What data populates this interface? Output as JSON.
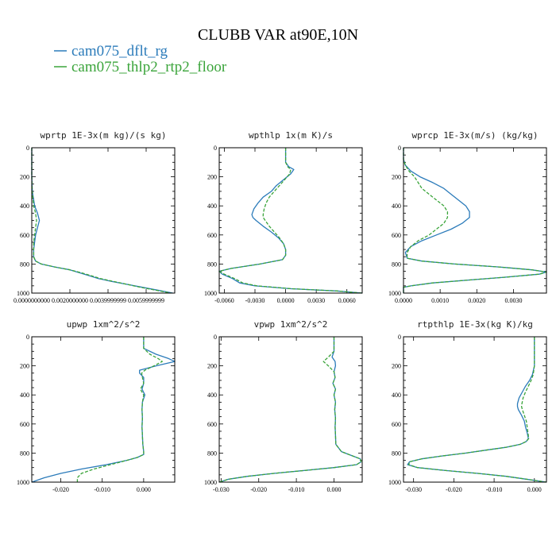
{
  "figure": {
    "title": "CLUBB VAR at90E,10N",
    "legend": [
      {
        "label": "cam075_dflt_rg",
        "color": "#2b7bba",
        "dash": false
      },
      {
        "label": "cam075_thlp2_rtp2_floor",
        "color": "#3aa43a",
        "dash": true
      }
    ]
  },
  "chart_data": [
    {
      "type": "line",
      "title": "wprtp  1E-3x(m kg)/(s kg)",
      "xlim": [
        0,
        0.0075
      ],
      "ylim": [
        1000,
        0
      ],
      "xticks": [
        {
          "value": 0,
          "label": "0.0000000000"
        },
        {
          "value": 0.002,
          "label": "0.0020000000"
        },
        {
          "value": 0.004,
          "label": "0.0039999999"
        },
        {
          "value": 0.006,
          "label": "0.0059999999"
        }
      ],
      "yticks": [
        0,
        200,
        400,
        600,
        800,
        1000
      ],
      "series": [
        {
          "y": [
            0,
            100,
            200,
            300,
            400,
            450,
            500,
            550,
            600,
            650,
            700,
            750,
            780,
            800,
            820,
            840,
            860,
            880,
            900,
            920,
            940,
            960,
            980,
            1000
          ],
          "x": [
            0,
            0,
            0,
            3e-05,
            0.00015,
            0.0003,
            0.0004,
            0.0003,
            0.0002,
            0.00015,
            0.0001,
            0.0001,
            0.0002,
            0.0005,
            0.0012,
            0.002,
            0.0025,
            0.003,
            0.0035,
            0.0042,
            0.005,
            0.0058,
            0.0066,
            0.0074
          ]
        },
        {
          "y": [
            0,
            100,
            200,
            300,
            400,
            450,
            500,
            550,
            600,
            650,
            700,
            750,
            780,
            800,
            820,
            840,
            860,
            880,
            900,
            920,
            940,
            960,
            980,
            1000
          ],
          "x": [
            0,
            0,
            0,
            2e-05,
            0.0001,
            0.0002,
            0.00025,
            0.0002,
            0.00015,
            0.0001,
            0.0001,
            0.0001,
            0.0002,
            0.0005,
            0.0012,
            0.002,
            0.0026,
            0.0031,
            0.0036,
            0.0043,
            0.005,
            0.0057,
            0.0065,
            0.0073
          ]
        }
      ]
    },
    {
      "type": "line",
      "title": "wpthlp  1x(m K)/s",
      "xlim": [
        -0.0065,
        0.0075
      ],
      "ylim": [
        1000,
        0
      ],
      "xticks": [
        {
          "value": -0.006,
          "label": "-0.0060"
        },
        {
          "value": -0.003,
          "label": "-0.0030"
        },
        {
          "value": 0,
          "label": "0.0000"
        },
        {
          "value": 0.003,
          "label": "0.0030"
        },
        {
          "value": 0.006,
          "label": "0.0060"
        }
      ],
      "yticks": [
        0,
        200,
        400,
        600,
        800,
        1000
      ],
      "series": [
        {
          "y": [
            0,
            50,
            100,
            130,
            150,
            180,
            220,
            260,
            300,
            340,
            380,
            420,
            460,
            480,
            500,
            540,
            580,
            620,
            660,
            700,
            740,
            770,
            800,
            830,
            850,
            870,
            900,
            930,
            950,
            970,
            985,
            1000
          ],
          "x": [
            0,
            0,
            0,
            0.0003,
            0.0008,
            0.0005,
            -0.0002,
            -0.0009,
            -0.0014,
            -0.0022,
            -0.0027,
            -0.0031,
            -0.0033,
            -0.0032,
            -0.0029,
            -0.0022,
            -0.0014,
            -0.0007,
            -0.0002,
            0,
            0,
            -0.0003,
            -0.0025,
            -0.0053,
            -0.0066,
            -0.0062,
            -0.0052,
            -0.0045,
            -0.003,
            0.0005,
            0.005,
            0.0075
          ]
        },
        {
          "y": [
            0,
            50,
            100,
            130,
            150,
            180,
            220,
            260,
            300,
            340,
            380,
            420,
            460,
            480,
            500,
            540,
            580,
            620,
            660,
            700,
            740,
            770,
            800,
            830,
            850,
            870,
            900,
            930,
            950,
            970,
            985,
            1000
          ],
          "x": [
            0,
            0,
            0,
            0.0002,
            0.0005,
            0.0004,
            -0.0001,
            -0.0006,
            -0.0011,
            -0.0016,
            -0.0019,
            -0.0021,
            -0.0022,
            -0.0022,
            -0.002,
            -0.0016,
            -0.0011,
            -0.0006,
            -0.0002,
            0,
            0,
            -0.0003,
            -0.0025,
            -0.0053,
            -0.0066,
            -0.006,
            -0.005,
            -0.0042,
            -0.0028,
            0.0006,
            0.005,
            0.0075
          ]
        }
      ]
    },
    {
      "type": "line",
      "title": "wprcp  1E-3x(m/s) (kg/kg)",
      "xlim": [
        0,
        0.0039
      ],
      "ylim": [
        1000,
        0
      ],
      "xticks": [
        {
          "value": 0,
          "label": "0.0000"
        },
        {
          "value": 0.001,
          "label": "0.0010"
        },
        {
          "value": 0.002,
          "label": "0.0020"
        },
        {
          "value": 0.003,
          "label": "0.0030"
        }
      ],
      "yticks": [
        0,
        200,
        400,
        600,
        800,
        1000
      ],
      "series": [
        {
          "y": [
            0,
            80,
            120,
            160,
            200,
            240,
            280,
            320,
            360,
            400,
            440,
            480,
            520,
            560,
            600,
            640,
            680,
            720,
            760,
            780,
            800,
            820,
            840,
            855,
            870,
            890,
            910,
            930,
            950,
            960,
            980,
            1000
          ],
          "x": [
            0,
            0,
            5e-05,
            0.0002,
            0.00045,
            0.0008,
            0.0011,
            0.0013,
            0.0015,
            0.0017,
            0.0018,
            0.0018,
            0.0016,
            0.0013,
            0.0009,
            0.0005,
            0.0002,
            5e-05,
            0.0001,
            0.0005,
            0.0014,
            0.0026,
            0.0035,
            0.0039,
            0.0037,
            0.0028,
            0.0018,
            0.0008,
            0.0002,
            0,
            0,
            0
          ]
        },
        {
          "y": [
            0,
            80,
            120,
            160,
            200,
            240,
            280,
            320,
            360,
            400,
            440,
            480,
            520,
            560,
            600,
            640,
            680,
            720,
            760,
            780,
            800,
            820,
            840,
            855,
            870,
            890,
            910,
            930,
            950,
            960,
            980,
            1000
          ],
          "x": [
            0,
            0,
            5e-05,
            0.00015,
            0.0003,
            0.0004,
            0.0005,
            0.0007,
            0.0009,
            0.0011,
            0.0012,
            0.0012,
            0.0011,
            0.0009,
            0.0007,
            0.0004,
            0.0002,
            0.0001,
            0.0001,
            0.0005,
            0.0014,
            0.0026,
            0.0035,
            0.0039,
            0.0037,
            0.0028,
            0.0018,
            0.0008,
            0.0002,
            0,
            0,
            0
          ]
        }
      ]
    },
    {
      "type": "line",
      "title": "upwp  1xm^2/s^2",
      "xlim": [
        -0.027,
        0.0075
      ],
      "ylim": [
        1000,
        0
      ],
      "xticks": [
        {
          "value": -0.02,
          "label": "-0.020"
        },
        {
          "value": -0.01,
          "label": "-0.010"
        },
        {
          "value": 0,
          "label": "0.000"
        }
      ],
      "yticks": [
        0,
        200,
        400,
        600,
        800,
        1000
      ],
      "series": [
        {
          "y": [
            0,
            80,
            120,
            150,
            170,
            200,
            230,
            250,
            280,
            320,
            360,
            400,
            450,
            500,
            560,
            620,
            680,
            740,
            790,
            810,
            830,
            850,
            880,
            910,
            940,
            970,
            1000
          ],
          "x": [
            0,
            0,
            0.003,
            0.006,
            0.0075,
            0.003,
            -0.001,
            -0.001,
            0,
            0,
            -0.0004,
            0.0003,
            -0.0003,
            -0.0004,
            -0.0003,
            -0.0004,
            -0.0003,
            -0.0002,
            0,
            0,
            -0.0015,
            -0.004,
            -0.009,
            -0.015,
            -0.02,
            -0.024,
            -0.027
          ]
        },
        {
          "y": [
            0,
            80,
            120,
            150,
            170,
            200,
            230,
            250,
            280,
            320,
            360,
            400,
            450,
            500,
            560,
            620,
            680,
            740,
            790,
            810,
            830,
            850,
            880,
            910,
            940,
            970,
            1000
          ],
          "x": [
            0,
            0,
            0.0015,
            0.0035,
            0.0045,
            0.0025,
            0.0003,
            -0.0005,
            -0.0003,
            0,
            -0.0008,
            0,
            -0.0003,
            -0.0004,
            -0.0003,
            -0.0004,
            -0.0003,
            -0.0002,
            0,
            0,
            -0.0015,
            -0.004,
            -0.008,
            -0.012,
            -0.015,
            -0.016,
            -0.016
          ]
        }
      ]
    },
    {
      "type": "line",
      "title": "vpwp  1xm^2/s^2",
      "xlim": [
        -0.0305,
        0.0075
      ],
      "ylim": [
        1000,
        0
      ],
      "xticks": [
        {
          "value": -0.03,
          "label": "-0.030"
        },
        {
          "value": -0.02,
          "label": "-0.020"
        },
        {
          "value": -0.01,
          "label": "-0.010"
        },
        {
          "value": 0,
          "label": "0.000"
        }
      ],
      "yticks": [
        0,
        200,
        400,
        600,
        800,
        1000
      ],
      "series": [
        {
          "y": [
            0,
            100,
            140,
            170,
            200,
            240,
            280,
            320,
            360,
            400,
            450,
            500,
            560,
            620,
            680,
            740,
            790,
            820,
            840,
            860,
            880,
            900,
            920,
            940,
            960,
            980,
            1000
          ],
          "x": [
            0,
            0,
            -0.0005,
            0.0003,
            0.0004,
            0,
            0.0003,
            -0.0003,
            0.0004,
            0,
            0.0004,
            0.0002,
            0.0004,
            0.0003,
            0.0004,
            0.0005,
            0.002,
            0.005,
            0.007,
            0.0072,
            0.006,
            0,
            -0.008,
            -0.016,
            -0.023,
            -0.028,
            -0.0305
          ]
        },
        {
          "y": [
            0,
            100,
            140,
            170,
            200,
            240,
            280,
            320,
            360,
            400,
            450,
            500,
            560,
            620,
            680,
            740,
            790,
            820,
            840,
            860,
            880,
            900,
            920,
            940,
            960,
            980,
            1000
          ],
          "x": [
            0,
            0,
            -0.0015,
            -0.0028,
            -0.0015,
            0,
            0.0003,
            -0.0003,
            0.0004,
            0,
            0.0004,
            0.0002,
            0.0004,
            0.0003,
            0.0004,
            0.0005,
            0.002,
            0.005,
            0.007,
            0.0072,
            0.006,
            0,
            -0.008,
            -0.016,
            -0.023,
            -0.028,
            -0.0305
          ]
        }
      ]
    },
    {
      "type": "line",
      "title": "rtpthlp  1E-3x(kg K)/kg",
      "xlim": [
        -0.0325,
        0.003
      ],
      "ylim": [
        1000,
        0
      ],
      "xticks": [
        {
          "value": -0.03,
          "label": "-0.030"
        },
        {
          "value": -0.02,
          "label": "-0.020"
        },
        {
          "value": -0.01,
          "label": "-0.010"
        },
        {
          "value": 0,
          "label": "0.000"
        }
      ],
      "yticks": [
        0,
        200,
        400,
        600,
        800,
        1000
      ],
      "series": [
        {
          "y": [
            0,
            100,
            200,
            260,
            300,
            340,
            380,
            420,
            460,
            480,
            500,
            540,
            580,
            620,
            660,
            700,
            720,
            740,
            760,
            780,
            800,
            820,
            840,
            860,
            880,
            900,
            920,
            940,
            960,
            980,
            1000
          ],
          "x": [
            0,
            0,
            0,
            -0.0005,
            -0.0012,
            -0.0022,
            -0.003,
            -0.0038,
            -0.0042,
            -0.0042,
            -0.004,
            -0.0032,
            -0.0025,
            -0.0022,
            -0.0018,
            -0.0015,
            -0.002,
            -0.0035,
            -0.007,
            -0.012,
            -0.017,
            -0.023,
            -0.028,
            -0.031,
            -0.0315,
            -0.029,
            -0.022,
            -0.014,
            -0.007,
            -0.002,
            0.003
          ]
        },
        {
          "y": [
            0,
            100,
            200,
            260,
            300,
            340,
            380,
            420,
            460,
            480,
            500,
            540,
            580,
            620,
            660,
            700,
            720,
            740,
            760,
            780,
            800,
            820,
            840,
            860,
            880,
            900,
            920,
            940,
            960,
            980,
            1000
          ],
          "x": [
            0,
            0,
            0,
            -0.0003,
            -0.0008,
            -0.0015,
            -0.0022,
            -0.0028,
            -0.0031,
            -0.0032,
            -0.003,
            -0.0025,
            -0.002,
            -0.0018,
            -0.0016,
            -0.0014,
            -0.002,
            -0.0035,
            -0.007,
            -0.012,
            -0.017,
            -0.023,
            -0.028,
            -0.031,
            -0.0312,
            -0.029,
            -0.022,
            -0.014,
            -0.007,
            -0.002,
            0.003
          ]
        }
      ]
    }
  ]
}
